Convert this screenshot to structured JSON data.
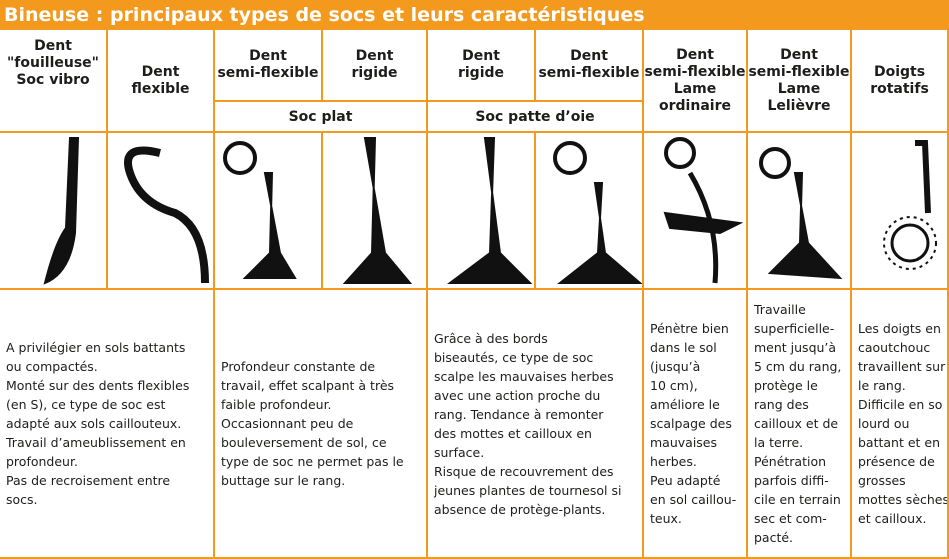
{
  "title": "Bineuse : principaux types de socs et leurs caractéristiques",
  "headers": [
    {
      "lines": [
        "Dent",
        "\"fouilleuse\"",
        "Soc vibro"
      ]
    },
    {
      "lines": [
        "Dent",
        "flexible"
      ]
    },
    {
      "lines": [
        "Dent",
        "semi-flexible"
      ]
    },
    {
      "lines": [
        "Dent",
        "rigide"
      ]
    },
    {
      "lines": [
        "Dent",
        "rigide"
      ]
    },
    {
      "lines": [
        "Dent",
        "semi-flexible"
      ]
    },
    {
      "lines": [
        "Dent",
        "semi-flexible",
        "Lame",
        "ordinaire"
      ]
    },
    {
      "lines": [
        "Dent",
        "semi-flexible",
        "Lame",
        "Lelièvre"
      ]
    },
    {
      "lines": [
        "Doigts",
        "rotatifs"
      ]
    }
  ],
  "groups": [
    {
      "label": "Soc plat"
    },
    {
      "label": "Soc patte d’oie"
    }
  ],
  "descriptions": [
    {
      "lines": [
        "A privilégier en sols battants",
        "ou compactés.",
        "Monté sur des dents flexibles",
        "(en S), ce type de soc est",
        "adapté aux sols caillouteux.",
        "Travail d’ameublissement en",
        "profondeur.",
        "Pas de recroisement entre",
        "socs."
      ]
    },
    {
      "lines": [
        "Profondeur constante de",
        "travail, effet scalpant à très",
        "faible profondeur.",
        "Occasionnant peu de",
        "bouleversement de sol, ce",
        "type de soc ne permet pas le",
        "buttage sur le rang."
      ]
    },
    {
      "lines": [
        "Grâce à des bords",
        "biseautés, ce type de soc",
        "scalpe les mauvaises herbes",
        "avec une action proche du",
        "rang. Tendance à remonter",
        "des mottes et cailloux en",
        "surface.",
        "Risque de recouvrement des",
        "jeunes plantes de tournesol si",
        "absence de protège-plants."
      ]
    },
    {
      "lines": [
        "Pénètre bien",
        "dans le sol",
        "(jusqu’à",
        "10 cm),",
        "améliore le",
        "scalpage des",
        "mauvaises",
        "herbes.",
        "Peu adapté",
        "en sol caillou-",
        "teux."
      ]
    },
    {
      "lines": [
        "Travaille",
        "superficielle-",
        "ment jusqu’à",
        "5 cm du rang,",
        "protège le",
        "rang des",
        "cailloux et de",
        "la terre.",
        "Pénétration",
        "parfois diffi-",
        "cile en terrain",
        "sec et com-",
        "pacté."
      ]
    },
    {
      "lines": [
        "Les doigts en",
        "caoutchouc",
        "travaillent sur",
        "le rang.",
        "Difficile en so",
        "lourd ou",
        "battant et en",
        "présence de",
        "grosses",
        "mottes sèches",
        "et cailloux."
      ]
    }
  ]
}
